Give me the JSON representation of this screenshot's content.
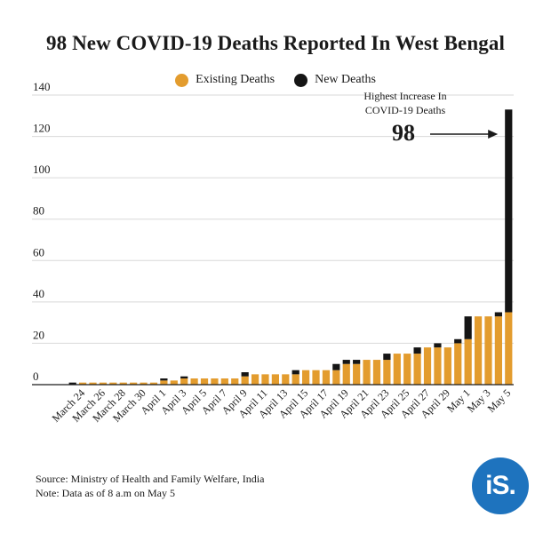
{
  "colors": {
    "existing": "#E39C2E",
    "new": "#151515",
    "grid": "#d9d9d9",
    "logo": "#1E73BE"
  },
  "chart_data": {
    "type": "bar",
    "title": "98 New COVID-19 Deaths Reported In West Bengal",
    "stacked": true,
    "ylim": [
      0,
      140
    ],
    "yticks": [
      0,
      20,
      40,
      60,
      80,
      100,
      120,
      140
    ],
    "grid": true,
    "legend_position": "top-center",
    "categories": [
      "March 23",
      "March 24",
      "March 25",
      "March 26",
      "March 27",
      "March 28",
      "March 29",
      "March 30",
      "March 31",
      "April 1",
      "April 2",
      "April 3",
      "April 4",
      "April 5",
      "April 6",
      "April 7",
      "April 8",
      "April 9",
      "April 10",
      "April 11",
      "April 12",
      "April 13",
      "April 14",
      "April 15",
      "April 16",
      "April 17",
      "April 18",
      "April 19",
      "April 20",
      "April 21",
      "April 22",
      "April 23",
      "April 24",
      "April 25",
      "April 26",
      "April 27",
      "April 28",
      "April 29",
      "April 30",
      "May 1",
      "May 2",
      "May 3",
      "May 4",
      "May 5"
    ],
    "xtick_labels": [
      "March 24",
      "March 26",
      "March 28",
      "March 30",
      "April 1",
      "April 3",
      "April 5",
      "April 7",
      "April 9",
      "April 11",
      "April 13",
      "April 15",
      "April 17",
      "April 19",
      "April 21",
      "April 23",
      "April 25",
      "April 27",
      "April 29",
      "May 1",
      "May 3",
      "May 5"
    ],
    "series": [
      {
        "name": "Existing Deaths",
        "values": [
          0,
          1,
          1,
          1,
          1,
          1,
          1,
          1,
          1,
          2,
          2,
          3,
          3,
          3,
          3,
          3,
          3,
          4,
          5,
          5,
          5,
          5,
          5,
          7,
          7,
          7,
          7,
          10,
          10,
          12,
          12,
          12,
          15,
          15,
          15,
          18,
          18,
          18,
          20,
          22,
          33,
          33,
          33,
          35
        ]
      },
      {
        "name": "New Deaths",
        "values": [
          1,
          0,
          0,
          0,
          0,
          0,
          0,
          0,
          0,
          1,
          0,
          1,
          0,
          0,
          0,
          0,
          0,
          2,
          0,
          0,
          0,
          0,
          2,
          0,
          0,
          0,
          3,
          2,
          2,
          0,
          0,
          3,
          0,
          0,
          3,
          0,
          2,
          0,
          2,
          11,
          0,
          0,
          2,
          98
        ]
      }
    ],
    "annotation": {
      "label": "Highest Increase In COVID-19 Deaths",
      "value": "98"
    }
  },
  "footer": {
    "source": "Source: Ministry of Health and Family Welfare, India",
    "note": "Note: Data as of 8 a.m on May 5"
  },
  "logo": {
    "text": "iS."
  }
}
